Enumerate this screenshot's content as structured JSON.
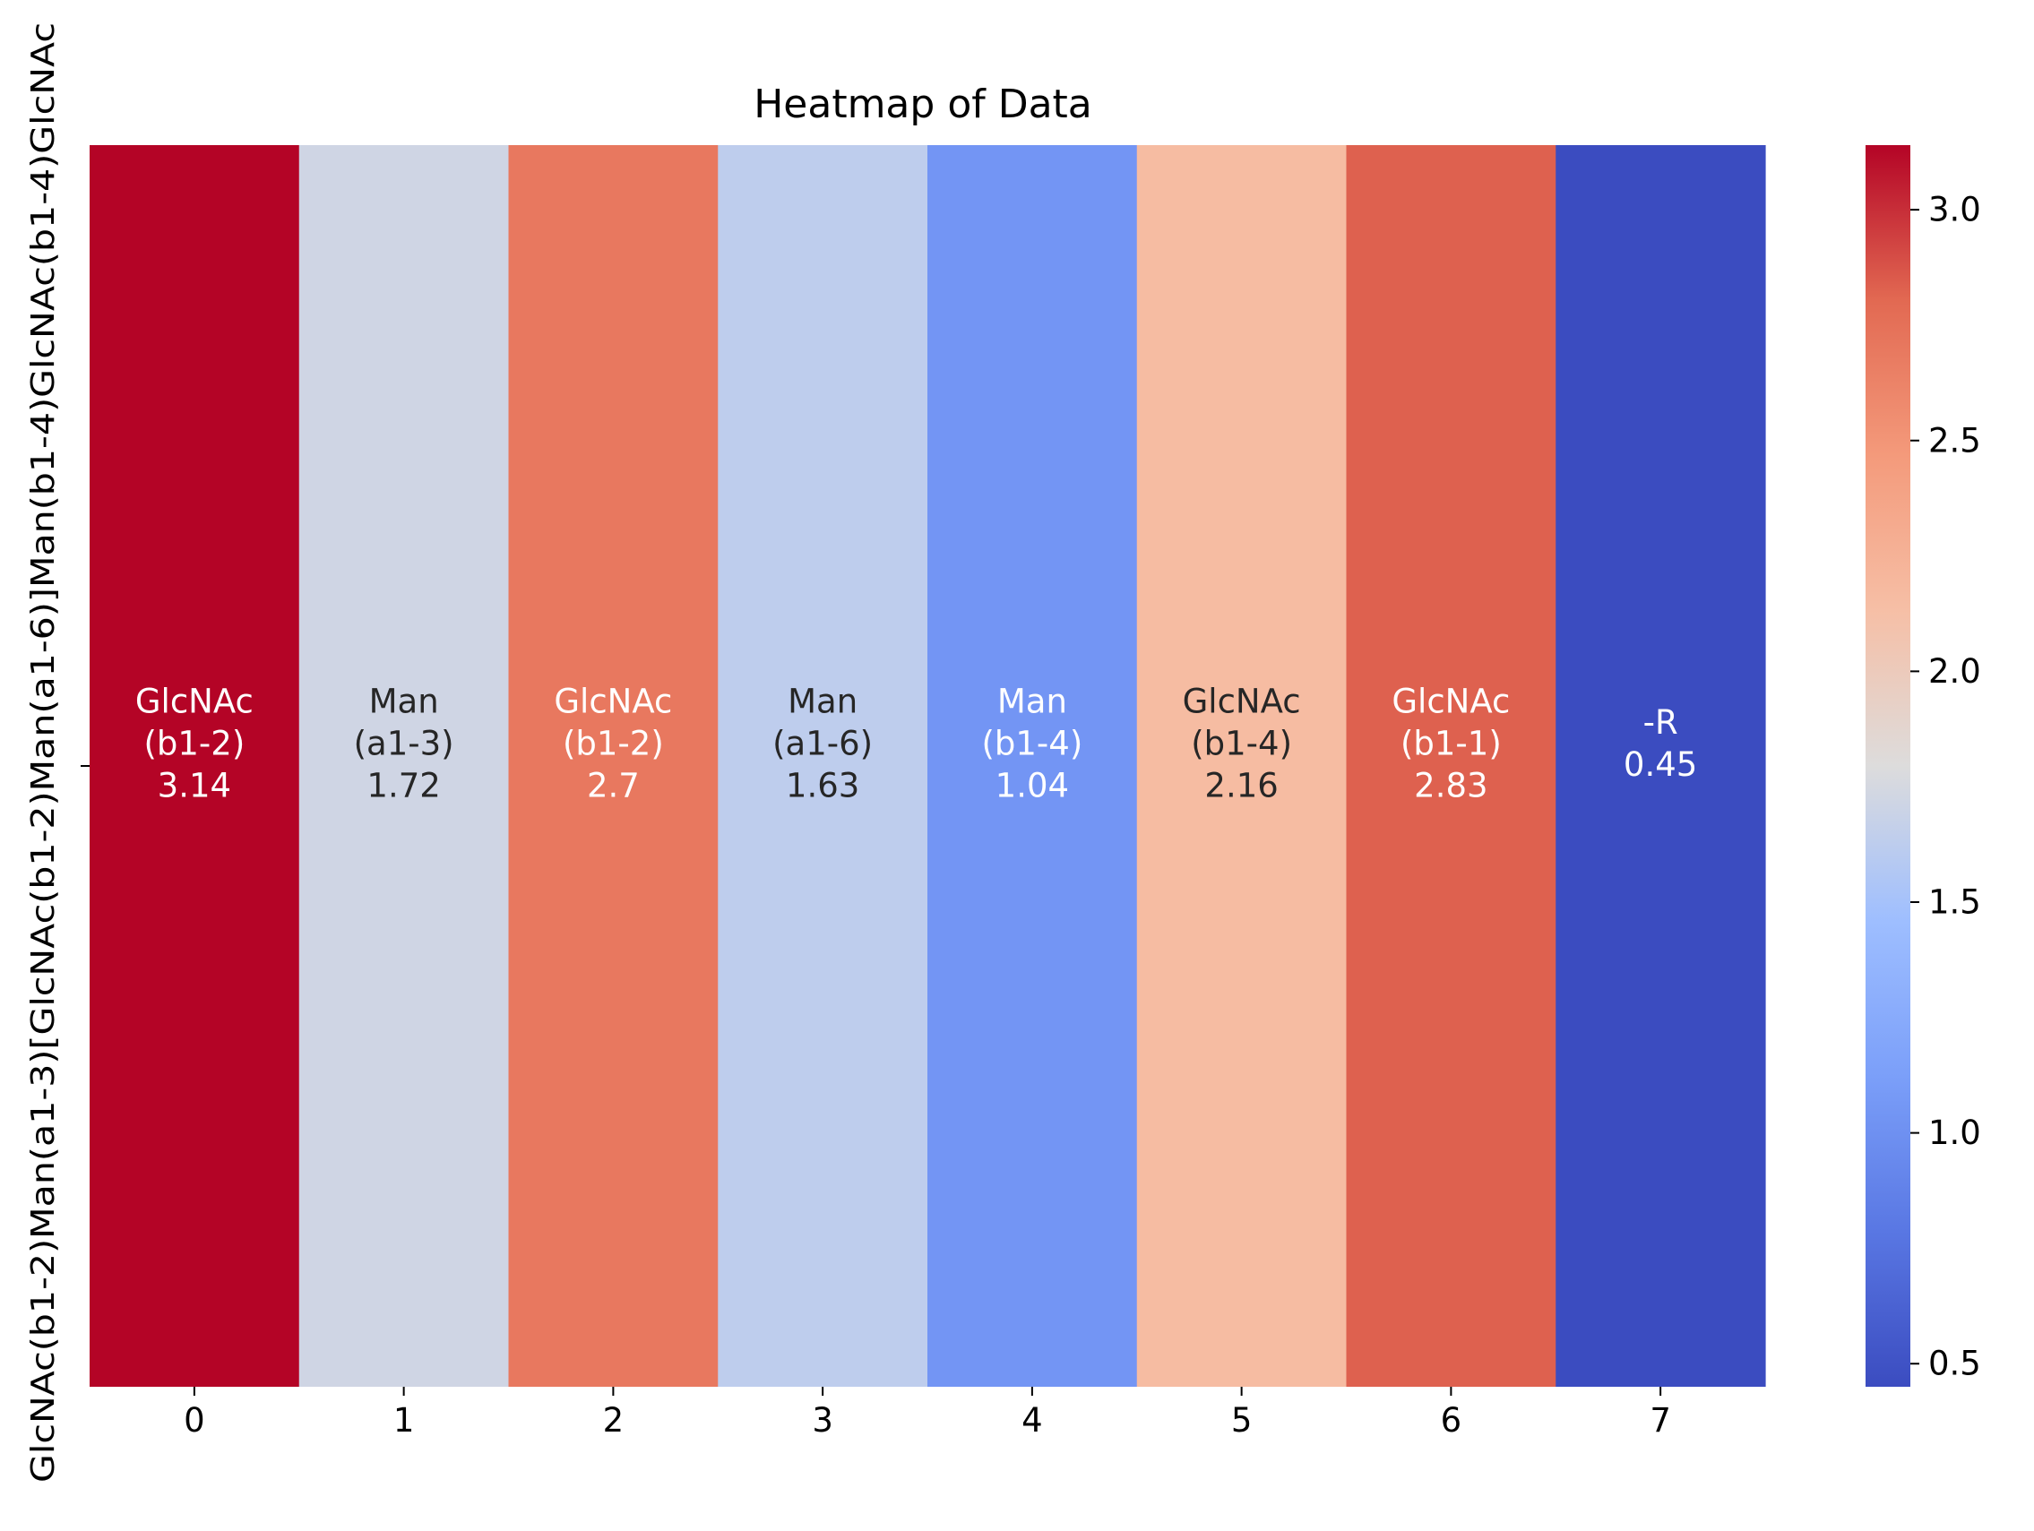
{
  "chart_data": {
    "type": "heatmap",
    "title": "Heatmap of Data",
    "xlabel": "",
    "ylabel": "",
    "x_ticks": [
      "0",
      "1",
      "2",
      "3",
      "4",
      "5",
      "6",
      "7"
    ],
    "y_ticks": [
      "GlcNAc(b1-2)Man(a1-3)[GlcNAc(b1-2)Man(a1-6)]Man(b1-4)GlcNAc(b1-4)GlcNAc"
    ],
    "cells": [
      {
        "line1": "GlcNAc",
        "line2": "(b1-2)",
        "value_label": "3.14",
        "value": 3.14
      },
      {
        "line1": "Man",
        "line2": "(a1-3)",
        "value_label": "1.72",
        "value": 1.72
      },
      {
        "line1": "GlcNAc",
        "line2": "(b1-2)",
        "value_label": "2.7",
        "value": 2.7
      },
      {
        "line1": "Man",
        "line2": "(a1-6)",
        "value_label": "1.63",
        "value": 1.63
      },
      {
        "line1": "Man",
        "line2": "(b1-4)",
        "value_label": "1.04",
        "value": 1.04
      },
      {
        "line1": "GlcNAc",
        "line2": "(b1-4)",
        "value_label": "2.16",
        "value": 2.16
      },
      {
        "line1": "GlcNAc",
        "line2": "(b1-1)",
        "value_label": "2.83",
        "value": 2.83
      },
      {
        "line1": "-R",
        "line2": "",
        "value_label": "0.45",
        "value": 0.45
      }
    ],
    "colormap": "coolwarm",
    "vmin": 0.45,
    "vmax": 3.14,
    "colorbar": {
      "ticks": [
        0.5,
        1.0,
        1.5,
        2.0,
        2.5,
        3.0
      ],
      "tick_labels": [
        "0.5",
        "1.0",
        "1.5",
        "2.0",
        "2.5",
        "3.0"
      ]
    }
  }
}
